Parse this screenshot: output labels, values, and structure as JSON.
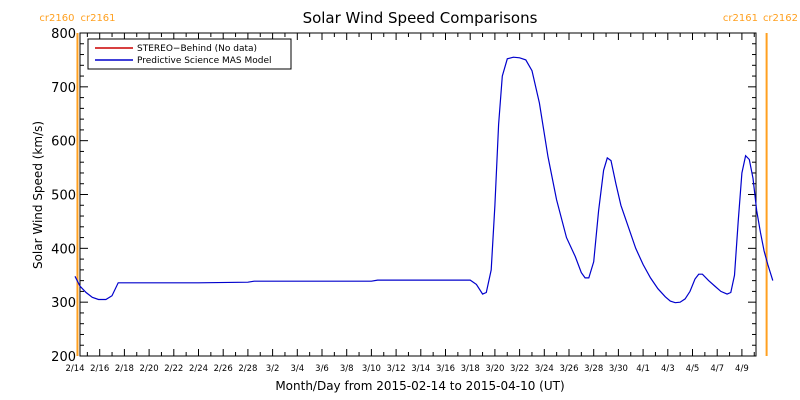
{
  "chart_data": {
    "type": "line",
    "title": "Solar Wind Speed Comparisons",
    "xlabel": "Month/Day from 2015-02-14 to 2015-04-10 (UT)",
    "ylabel": "Solar Wind Speed (km/s)",
    "xlim_days": [
      0,
      55.5
    ],
    "ylim": [
      200,
      800
    ],
    "yticks": [
      200,
      300,
      400,
      500,
      600,
      700,
      800
    ],
    "xticks": [
      {
        "day": 0,
        "label": "2/14"
      },
      {
        "day": 2,
        "label": "2/16"
      },
      {
        "day": 4,
        "label": "2/18"
      },
      {
        "day": 6,
        "label": "2/20"
      },
      {
        "day": 8,
        "label": "2/22"
      },
      {
        "day": 10,
        "label": "2/24"
      },
      {
        "day": 12,
        "label": "2/26"
      },
      {
        "day": 14,
        "label": "2/28"
      },
      {
        "day": 16,
        "label": "3/2"
      },
      {
        "day": 18,
        "label": "3/4"
      },
      {
        "day": 20,
        "label": "3/6"
      },
      {
        "day": 22,
        "label": "3/8"
      },
      {
        "day": 24,
        "label": "3/10"
      },
      {
        "day": 26,
        "label": "3/12"
      },
      {
        "day": 28,
        "label": "3/14"
      },
      {
        "day": 30,
        "label": "3/16"
      },
      {
        "day": 32,
        "label": "3/18"
      },
      {
        "day": 34,
        "label": "3/20"
      },
      {
        "day": 36,
        "label": "3/22"
      },
      {
        "day": 38,
        "label": "3/24"
      },
      {
        "day": 40,
        "label": "3/26"
      },
      {
        "day": 42,
        "label": "3/28"
      },
      {
        "day": 44,
        "label": "3/30"
      },
      {
        "day": 46,
        "label": "4/1"
      },
      {
        "day": 48,
        "label": "4/3"
      },
      {
        "day": 50,
        "label": "4/5"
      },
      {
        "day": 52,
        "label": "4/7"
      },
      {
        "day": 54,
        "label": "4/9"
      }
    ],
    "legend_position": "top-left",
    "series": [
      {
        "name": "STEREO−Behind (No data)",
        "color": "#cc0000",
        "points": []
      },
      {
        "name": "Predictive Science MAS Model",
        "color": "#0000cc",
        "points": [
          [
            0.0,
            348
          ],
          [
            0.4,
            330
          ],
          [
            0.9,
            318
          ],
          [
            1.4,
            309
          ],
          [
            1.9,
            305
          ],
          [
            2.5,
            305
          ],
          [
            3.0,
            312
          ],
          [
            3.5,
            336
          ],
          [
            5.0,
            336
          ],
          [
            10.0,
            336
          ],
          [
            14.0,
            337
          ],
          [
            14.5,
            339
          ],
          [
            20.0,
            339
          ],
          [
            24.0,
            339
          ],
          [
            24.5,
            341
          ],
          [
            28.0,
            341
          ],
          [
            32.0,
            341
          ],
          [
            32.5,
            333
          ],
          [
            33.0,
            315
          ],
          [
            33.3,
            318
          ],
          [
            33.7,
            360
          ],
          [
            34.0,
            480
          ],
          [
            34.3,
            630
          ],
          [
            34.6,
            720
          ],
          [
            35.0,
            752
          ],
          [
            35.5,
            755
          ],
          [
            36.0,
            754
          ],
          [
            36.5,
            750
          ],
          [
            37.0,
            730
          ],
          [
            37.6,
            670
          ],
          [
            38.3,
            570
          ],
          [
            39.0,
            490
          ],
          [
            39.8,
            420
          ],
          [
            40.5,
            385
          ],
          [
            41.0,
            355
          ],
          [
            41.3,
            345
          ],
          [
            41.6,
            345
          ],
          [
            42.0,
            375
          ],
          [
            42.4,
            470
          ],
          [
            42.8,
            545
          ],
          [
            43.1,
            568
          ],
          [
            43.4,
            563
          ],
          [
            43.8,
            520
          ],
          [
            44.2,
            480
          ],
          [
            44.8,
            440
          ],
          [
            45.4,
            400
          ],
          [
            46.0,
            370
          ],
          [
            46.6,
            345
          ],
          [
            47.2,
            325
          ],
          [
            47.8,
            310
          ],
          [
            48.2,
            302
          ],
          [
            48.6,
            299
          ],
          [
            49.0,
            300
          ],
          [
            49.4,
            306
          ],
          [
            49.8,
            320
          ],
          [
            50.2,
            343
          ],
          [
            50.5,
            352
          ],
          [
            50.8,
            352
          ],
          [
            51.3,
            340
          ],
          [
            51.8,
            330
          ],
          [
            52.3,
            320
          ],
          [
            52.8,
            315
          ],
          [
            53.1,
            318
          ],
          [
            53.4,
            350
          ],
          [
            53.7,
            450
          ],
          [
            54.0,
            540
          ],
          [
            54.3,
            572
          ],
          [
            54.6,
            565
          ],
          [
            54.9,
            530
          ],
          [
            55.2,
            470
          ],
          [
            55.5,
            430
          ],
          [
            55.8,
            395
          ],
          [
            56.1,
            370
          ],
          [
            56.5,
            340
          ]
        ]
      }
    ],
    "markers": [
      {
        "day": 0.2,
        "label_left": "cr2160",
        "label_right": "cr2161",
        "color": "#ffa020"
      },
      {
        "day": 56.0,
        "label_left": "cr2161",
        "label_right": "cr2162",
        "color": "#ffa020"
      }
    ]
  }
}
